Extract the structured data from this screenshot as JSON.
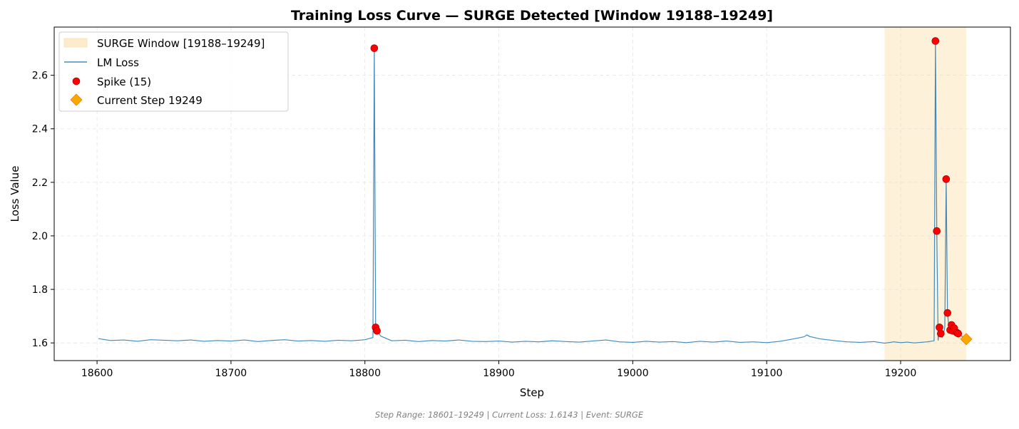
{
  "chart_data": {
    "type": "line",
    "title": "Training Loss Curve — SURGE Detected [Window 19188–19249]",
    "xlabel": "Step",
    "ylabel": "Loss Value",
    "xlim": [
      18568,
      19282
    ],
    "ylim": [
      1.534,
      2.78
    ],
    "xticks": [
      18600,
      18700,
      18800,
      18900,
      19000,
      19100,
      19200
    ],
    "yticks": [
      1.6,
      1.8,
      2.0,
      2.2,
      2.4,
      2.6
    ],
    "ytick_labels": [
      "1.6",
      "1.8",
      "2.0",
      "2.2",
      "2.4",
      "2.6"
    ],
    "grid": true,
    "legend_position": "top-left",
    "surge_window": {
      "start": 19188,
      "end": 19249,
      "label": "SURGE Window [19188–19249]",
      "color": "#fdeccc"
    },
    "series": [
      {
        "name": "LM Loss",
        "color": "#1f77b4",
        "x": [
          18601,
          18610,
          18620,
          18630,
          18640,
          18650,
          18660,
          18670,
          18680,
          18690,
          18700,
          18710,
          18720,
          18730,
          18740,
          18750,
          18760,
          18770,
          18780,
          18790,
          18800,
          18806,
          18807,
          18808,
          18809,
          18812,
          18820,
          18830,
          18840,
          18850,
          18860,
          18870,
          18880,
          18890,
          18900,
          18910,
          18920,
          18930,
          18940,
          18950,
          18960,
          18970,
          18980,
          18990,
          19000,
          19010,
          19020,
          19030,
          19040,
          19050,
          19060,
          19070,
          19080,
          19090,
          19100,
          19110,
          19120,
          19128,
          19130,
          19132,
          19140,
          19150,
          19160,
          19170,
          19180,
          19188,
          19195,
          19200,
          19205,
          19210,
          19215,
          19220,
          19225,
          19226,
          19227,
          19228,
          19229,
          19230,
          19231,
          19232,
          19233,
          19234,
          19235,
          19236,
          19237,
          19238,
          19239,
          19240,
          19241,
          19242,
          19243,
          19244,
          19245,
          19246,
          19247,
          19248,
          19249
        ],
        "y": [
          1.616,
          1.609,
          1.611,
          1.606,
          1.612,
          1.61,
          1.608,
          1.611,
          1.606,
          1.609,
          1.607,
          1.611,
          1.605,
          1.609,
          1.612,
          1.607,
          1.609,
          1.606,
          1.61,
          1.608,
          1.612,
          1.62,
          2.701,
          1.658,
          1.645,
          1.625,
          1.608,
          1.61,
          1.605,
          1.609,
          1.607,
          1.611,
          1.606,
          1.605,
          1.607,
          1.603,
          1.606,
          1.604,
          1.608,
          1.605,
          1.603,
          1.607,
          1.611,
          1.604,
          1.602,
          1.606,
          1.603,
          1.605,
          1.601,
          1.606,
          1.603,
          1.607,
          1.602,
          1.604,
          1.601,
          1.606,
          1.615,
          1.623,
          1.63,
          1.624,
          1.615,
          1.609,
          1.604,
          1.602,
          1.605,
          1.599,
          1.604,
          1.601,
          1.603,
          1.6,
          1.602,
          1.604,
          1.608,
          2.728,
          2.018,
          1.61,
          1.658,
          1.635,
          1.62,
          1.632,
          1.66,
          2.212,
          1.712,
          1.66,
          1.648,
          1.667,
          1.645,
          1.655,
          1.643,
          1.638,
          1.635,
          1.632,
          1.628,
          1.624,
          1.621,
          1.618,
          1.614
        ]
      }
    ],
    "spikes": {
      "name": "Spike (15)",
      "color": "#ff0000",
      "points": [
        {
          "x": 18807,
          "y": 2.701
        },
        {
          "x": 18808,
          "y": 1.658
        },
        {
          "x": 18809,
          "y": 1.645
        },
        {
          "x": 19226,
          "y": 2.728
        },
        {
          "x": 19227,
          "y": 2.018
        },
        {
          "x": 19229,
          "y": 1.658
        },
        {
          "x": 19230,
          "y": 1.635
        },
        {
          "x": 19234,
          "y": 2.212
        },
        {
          "x": 19235,
          "y": 1.712
        },
        {
          "x": 19237,
          "y": 1.648
        },
        {
          "x": 19238,
          "y": 1.667
        },
        {
          "x": 19239,
          "y": 1.645
        },
        {
          "x": 19240,
          "y": 1.655
        },
        {
          "x": 19242,
          "y": 1.638
        },
        {
          "x": 19243,
          "y": 1.635
        }
      ]
    },
    "current_step": {
      "name": "Current Step 19249",
      "x": 19249,
      "y": 1.6143,
      "color": "#ffa500"
    },
    "footer": "Step Range: 18601–19249 | Current Loss: 1.6143 | Event: SURGE"
  }
}
